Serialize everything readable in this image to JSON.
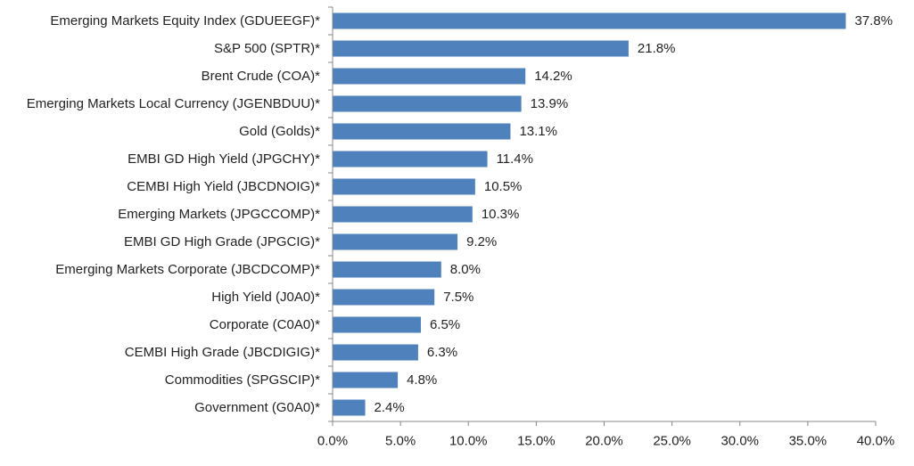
{
  "chart_data": {
    "type": "bar",
    "orientation": "horizontal",
    "title": "",
    "xlabel": "",
    "ylabel": "",
    "categories": [
      "Emerging Markets Equity Index (GDUEEGF)*",
      "S&P 500 (SPTR)*",
      "Brent Crude (COA)*",
      "Emerging Markets Local Currency (JGENBDUU)*",
      "Gold (Golds)*",
      "EMBI GD High Yield (JPGCHY)*",
      "CEMBI High Yield (JBCDNOIG)*",
      "Emerging Markets (JPGCCOMP)*",
      "EMBI GD High Grade (JPGCIG)*",
      "Emerging Markets Corporate (JBCDCOMP)*",
      "High Yield (J0A0)*",
      "Corporate (C0A0)*",
      "CEMBI High Grade (JBCDIGIG)*",
      "Commodities (SPGSCIP)*",
      "Government (G0A0)*"
    ],
    "values": [
      37.8,
      21.8,
      14.2,
      13.9,
      13.1,
      11.4,
      10.5,
      10.3,
      9.2,
      8.0,
      7.5,
      6.5,
      6.3,
      4.8,
      2.4
    ],
    "value_labels": [
      "37.8%",
      "21.8%",
      "14.2%",
      "13.9%",
      "13.1%",
      "11.4%",
      "10.5%",
      "10.3%",
      "9.2%",
      "8.0%",
      "7.5%",
      "6.5%",
      "6.3%",
      "4.8%",
      "2.4%"
    ],
    "xlim": [
      0,
      40
    ],
    "xticks": [
      0,
      5,
      10,
      15,
      20,
      25,
      30,
      35,
      40
    ],
    "xtick_labels": [
      "0.0%",
      "5.0%",
      "10.0%",
      "15.0%",
      "20.0%",
      "25.0%",
      "30.0%",
      "35.0%",
      "40.0%"
    ],
    "grid": false,
    "legend": "none",
    "colors": {
      "bar": "#4F81BD",
      "axis": "#888888",
      "text": "#222222"
    }
  }
}
